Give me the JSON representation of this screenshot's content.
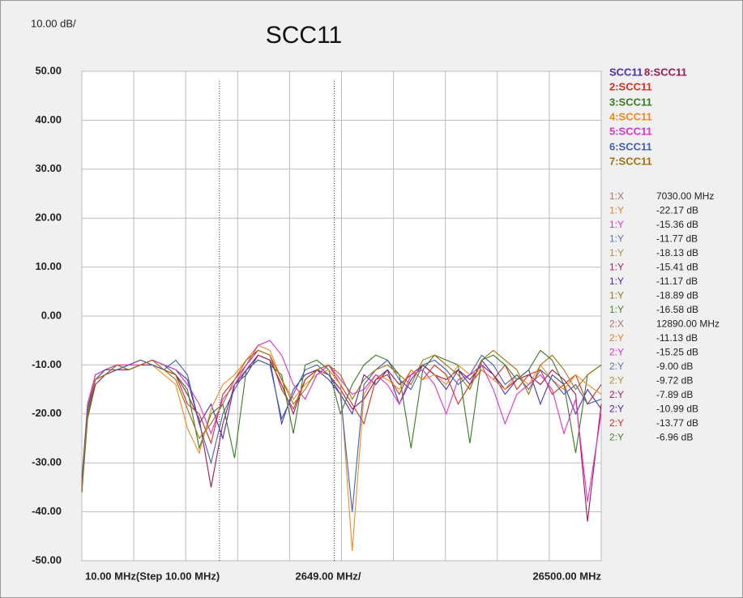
{
  "chart_data": {
    "type": "line",
    "scale_label": "10.00 dB/",
    "title": "SCC11",
    "x_labels": [
      "10.00 MHz(Step 10.00 MHz)",
      "2649.00 MHz/",
      "26500.00 MHz"
    ],
    "xlim": [
      10,
      26500
    ],
    "xticks": [
      10,
      2659,
      5308,
      7957,
      10606,
      13255,
      15904,
      18553,
      21202,
      23851,
      26500
    ],
    "ylim": [
      -50,
      50
    ],
    "yticks": [
      {
        "value": 50,
        "label": "50.00"
      },
      {
        "value": 40,
        "label": "40.00"
      },
      {
        "value": 30,
        "label": "30.00"
      },
      {
        "value": 20,
        "label": "20.00"
      },
      {
        "value": 10,
        "label": "10.00"
      },
      {
        "value": 0,
        "label": "0.00"
      },
      {
        "value": -10,
        "label": "-10.00"
      },
      {
        "value": -20,
        "label": "-20.00"
      },
      {
        "value": -30,
        "label": "-30.00"
      },
      {
        "value": -40,
        "label": "-40.00"
      },
      {
        "value": -50,
        "label": "-50.00"
      }
    ],
    "grid": true,
    "marker_lines": [
      7030,
      12890
    ],
    "x": [
      10,
      300,
      700,
      1200,
      1800,
      2400,
      3000,
      3600,
      4200,
      4800,
      5400,
      6000,
      6600,
      7200,
      7800,
      8400,
      9000,
      9600,
      10200,
      10800,
      11400,
      12000,
      12600,
      13200,
      13800,
      14400,
      15000,
      15600,
      16200,
      16800,
      17400,
      18000,
      18600,
      19200,
      19800,
      20400,
      21000,
      21600,
      22200,
      22800,
      23400,
      24000,
      24600,
      25200,
      25800,
      26500
    ],
    "series": [
      {
        "name": "SCC11",
        "color": "#4a2db5",
        "values": [
          -35,
          -20,
          -13,
          -11,
          -10,
          -11,
          -10,
          -9,
          -10,
          -11,
          -13,
          -22,
          -18,
          -25,
          -14,
          -12,
          -8,
          -9,
          -22,
          -15,
          -12,
          -11,
          -13,
          -16,
          -20,
          -12,
          -14,
          -11,
          -18,
          -13,
          -10,
          -12,
          -15,
          -11,
          -14,
          -9,
          -12,
          -16,
          -13,
          -11,
          -18,
          -12,
          -14,
          -20,
          -15,
          -19
        ]
      },
      {
        "name": "8:SCC11",
        "color": "#a01850",
        "values": [
          -36,
          -21,
          -14,
          -12,
          -11,
          -11,
          -10,
          -10,
          -11,
          -12,
          -16,
          -21,
          -35,
          -22,
          -14,
          -11,
          -8,
          -9,
          -14,
          -20,
          -13,
          -11,
          -12,
          -15,
          -19,
          -17,
          -13,
          -11,
          -14,
          -12,
          -10,
          -12,
          -13,
          -11,
          -13,
          -10,
          -12,
          -15,
          -13,
          -12,
          -14,
          -11,
          -13,
          -16,
          -42,
          -18
        ]
      },
      {
        "name": "2:SCC11",
        "color": "#d03020",
        "values": [
          -34,
          -19,
          -12,
          -11,
          -11,
          -10,
          -9,
          -10,
          -11,
          -12,
          -18,
          -20,
          -26,
          -16,
          -13,
          -10,
          -7,
          -8,
          -15,
          -19,
          -13,
          -11,
          -10,
          -14,
          -18,
          -22,
          -13,
          -12,
          -16,
          -11,
          -13,
          -10,
          -12,
          -18,
          -14,
          -11,
          -13,
          -10,
          -15,
          -12,
          -11,
          -16,
          -14,
          -12,
          -18,
          -14
        ]
      },
      {
        "name": "3:SCC11",
        "color": "#3a7a20",
        "values": [
          -36,
          -21,
          -13,
          -12,
          -10,
          -11,
          -10,
          -9,
          -10,
          -12,
          -15,
          -27,
          -20,
          -18,
          -29,
          -11,
          -9,
          -10,
          -12,
          -24,
          -10,
          -9,
          -11,
          -20,
          -14,
          -10,
          -8,
          -9,
          -12,
          -27,
          -11,
          -8,
          -9,
          -10,
          -26,
          -9,
          -8,
          -10,
          -13,
          -11,
          -7,
          -9,
          -14,
          -28,
          -12,
          -10
        ]
      },
      {
        "name": "4:SCC11",
        "color": "#f08a20",
        "values": [
          -35,
          -20,
          -12,
          -11,
          -10,
          -10,
          -9,
          -10,
          -12,
          -14,
          -23,
          -28,
          -19,
          -14,
          -12,
          -9,
          -6,
          -7,
          -13,
          -17,
          -14,
          -12,
          -11,
          -14,
          -48,
          -16,
          -12,
          -13,
          -15,
          -11,
          -13,
          -12,
          -14,
          -10,
          -12,
          -11,
          -13,
          -15,
          -12,
          -14,
          -10,
          -13,
          -15,
          -12,
          -14,
          -16
        ]
      },
      {
        "name": "5:SCC11",
        "color": "#e030d0",
        "values": [
          -34,
          -18,
          -12,
          -11,
          -10,
          -10,
          -10,
          -9,
          -10,
          -11,
          -14,
          -18,
          -24,
          -17,
          -14,
          -10,
          -6,
          -5,
          -8,
          -14,
          -17,
          -12,
          -10,
          -13,
          -16,
          -15,
          -12,
          -14,
          -18,
          -12,
          -11,
          -14,
          -20,
          -13,
          -12,
          -10,
          -15,
          -22,
          -16,
          -14,
          -12,
          -15,
          -24,
          -17,
          -38,
          -20
        ]
      },
      {
        "name": "6:SCC11",
        "color": "#4060b0",
        "values": [
          -33,
          -19,
          -13,
          -11,
          -11,
          -10,
          -9,
          -10,
          -11,
          -9,
          -12,
          -22,
          -30,
          -20,
          -15,
          -11,
          -9,
          -10,
          -21,
          -16,
          -11,
          -10,
          -12,
          -16,
          -40,
          -14,
          -11,
          -9,
          -13,
          -15,
          -10,
          -9,
          -11,
          -14,
          -12,
          -8,
          -10,
          -14,
          -12,
          -15,
          -11,
          -13,
          -16,
          -14,
          -18,
          -17
        ]
      },
      {
        "name": "7:SCC11",
        "color": "#a07010",
        "values": [
          -35,
          -20,
          -13,
          -12,
          -10,
          -11,
          -10,
          -9,
          -11,
          -13,
          -19,
          -25,
          -22,
          -18,
          -13,
          -9,
          -7,
          -8,
          -13,
          -18,
          -15,
          -11,
          -10,
          -12,
          -17,
          -13,
          -11,
          -10,
          -12,
          -14,
          -9,
          -8,
          -10,
          -12,
          -15,
          -9,
          -7,
          -9,
          -11,
          -16,
          -10,
          -8,
          -11,
          -15,
          -12,
          -10
        ]
      }
    ],
    "markers": [
      {
        "label": "1:X",
        "value": "7030.00 MHz",
        "color": "#b07070"
      },
      {
        "label": "1:Y",
        "value": "-22.17 dB",
        "color": "#e08030"
      },
      {
        "label": "1:Y",
        "value": "-15.36 dB",
        "color": "#e030d0"
      },
      {
        "label": "1:Y",
        "value": "-11.77 dB",
        "color": "#6070c0"
      },
      {
        "label": "1:Y",
        "value": "-18.13 dB",
        "color": "#b09040"
      },
      {
        "label": "1:Y",
        "value": "-15.41 dB",
        "color": "#a02060"
      },
      {
        "label": "1:Y",
        "value": "-11.17 dB",
        "color": "#5020b0"
      },
      {
        "label": "1:Y",
        "value": "-18.89 dB",
        "color": "#a07020"
      },
      {
        "label": "1:Y",
        "value": "-16.58 dB",
        "color": "#508030"
      },
      {
        "label": "2:X",
        "value": "12890.00 MHz",
        "color": "#b07070"
      },
      {
        "label": "2:Y",
        "value": "-11.13 dB",
        "color": "#e08030"
      },
      {
        "label": "2:Y",
        "value": "-15.25 dB",
        "color": "#e030d0"
      },
      {
        "label": "2:Y",
        "value": "-9.00 dB",
        "color": "#6070c0"
      },
      {
        "label": "2:Y",
        "value": "-9.72 dB",
        "color": "#b09040"
      },
      {
        "label": "2:Y",
        "value": "-7.89 dB",
        "color": "#a02060"
      },
      {
        "label": "2:Y",
        "value": "-10.99 dB",
        "color": "#5020b0"
      },
      {
        "label": "2:Y",
        "value": "-13.77 dB",
        "color": "#d03020"
      },
      {
        "label": "2:Y",
        "value": "-6.96 dB",
        "color": "#508030"
      }
    ]
  }
}
